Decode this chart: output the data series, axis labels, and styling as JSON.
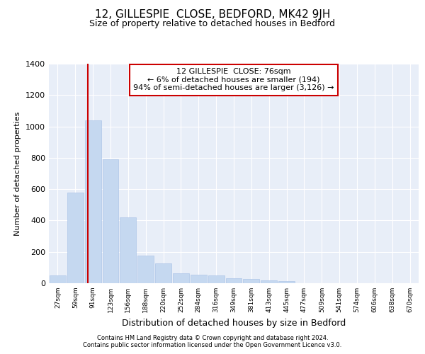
{
  "title1": "12, GILLESPIE  CLOSE, BEDFORD, MK42 9JH",
  "title2": "Size of property relative to detached houses in Bedford",
  "xlabel": "Distribution of detached houses by size in Bedford",
  "ylabel": "Number of detached properties",
  "bar_labels": [
    "27sqm",
    "59sqm",
    "91sqm",
    "123sqm",
    "156sqm",
    "188sqm",
    "220sqm",
    "252sqm",
    "284sqm",
    "316sqm",
    "349sqm",
    "381sqm",
    "413sqm",
    "445sqm",
    "477sqm",
    "509sqm",
    "541sqm",
    "574sqm",
    "606sqm",
    "638sqm",
    "670sqm"
  ],
  "bar_values": [
    48,
    578,
    1040,
    790,
    420,
    175,
    128,
    62,
    55,
    48,
    30,
    28,
    20,
    12,
    0,
    0,
    0,
    0,
    0,
    0,
    0
  ],
  "bar_color": "#c5d8f0",
  "bar_edge_color": "#aec6e8",
  "vline_x": 1.73,
  "vline_color": "#cc0000",
  "annotation_line1": "12 GILLESPIE  CLOSE: 76sqm",
  "annotation_line2": "← 6% of detached houses are smaller (194)",
  "annotation_line3": "94% of semi-detached houses are larger (3,126) →",
  "annotation_box_color": "#ffffff",
  "annotation_box_edge": "#cc0000",
  "ylim": [
    0,
    1400
  ],
  "yticks": [
    0,
    200,
    400,
    600,
    800,
    1000,
    1200,
    1400
  ],
  "bg_color": "#e8eef8",
  "grid_color": "#ffffff",
  "footer1": "Contains HM Land Registry data © Crown copyright and database right 2024.",
  "footer2": "Contains public sector information licensed under the Open Government Licence v3.0."
}
